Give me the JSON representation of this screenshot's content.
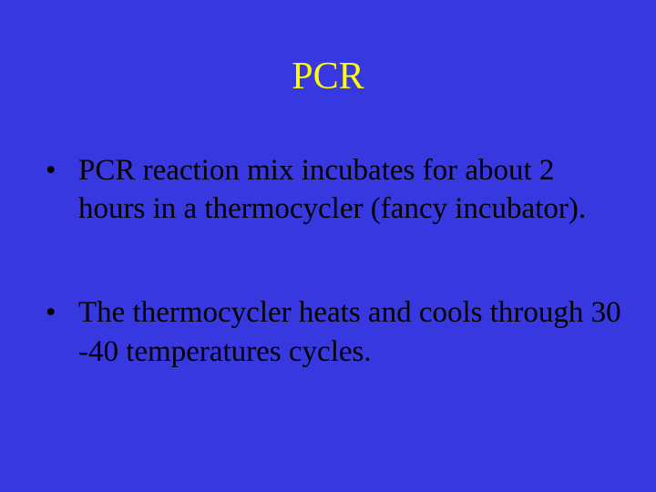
{
  "slide": {
    "title": "PCR",
    "title_color": "#ffff00",
    "title_fontsize": 42,
    "background_color": "#3838e0",
    "body_color": "#000000",
    "body_fontsize": 33,
    "font_family": "Times New Roman",
    "bullets": [
      "PCR reaction mix incubates for about 2 hours in a thermocycler (fancy incubator).",
      "The thermocycler heats and cools through 30 -40 temperatures cycles."
    ]
  }
}
